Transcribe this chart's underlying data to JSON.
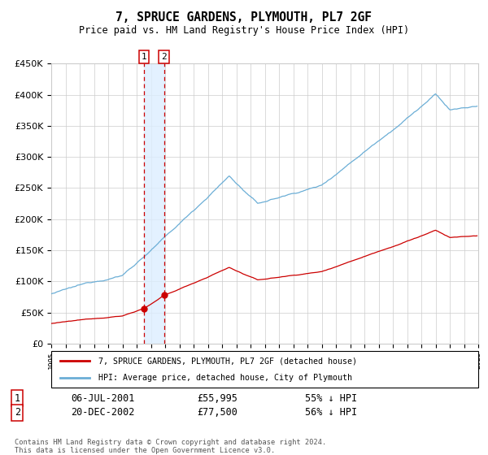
{
  "title": "7, SPRUCE GARDENS, PLYMOUTH, PL7 2GF",
  "subtitle": "Price paid vs. HM Land Registry's House Price Index (HPI)",
  "legend_line1": "7, SPRUCE GARDENS, PLYMOUTH, PL7 2GF (detached house)",
  "legend_line2": "HPI: Average price, detached house, City of Plymouth",
  "transaction1_date": "06-JUL-2001",
  "transaction1_price": 55995,
  "transaction2_date": "20-DEC-2002",
  "transaction2_price": 77500,
  "transaction1_pct": "55% ↓ HPI",
  "transaction2_pct": "56% ↓ HPI",
  "footer": "Contains HM Land Registry data © Crown copyright and database right 2024.\nThis data is licensed under the Open Government Licence v3.0.",
  "hpi_color": "#6baed6",
  "price_color": "#cc0000",
  "vline_color": "#cc0000",
  "shade_color": "#ddeeff",
  "grid_color": "#cccccc",
  "ylim_max": 450000,
  "year_start": 1995,
  "year_end": 2025
}
